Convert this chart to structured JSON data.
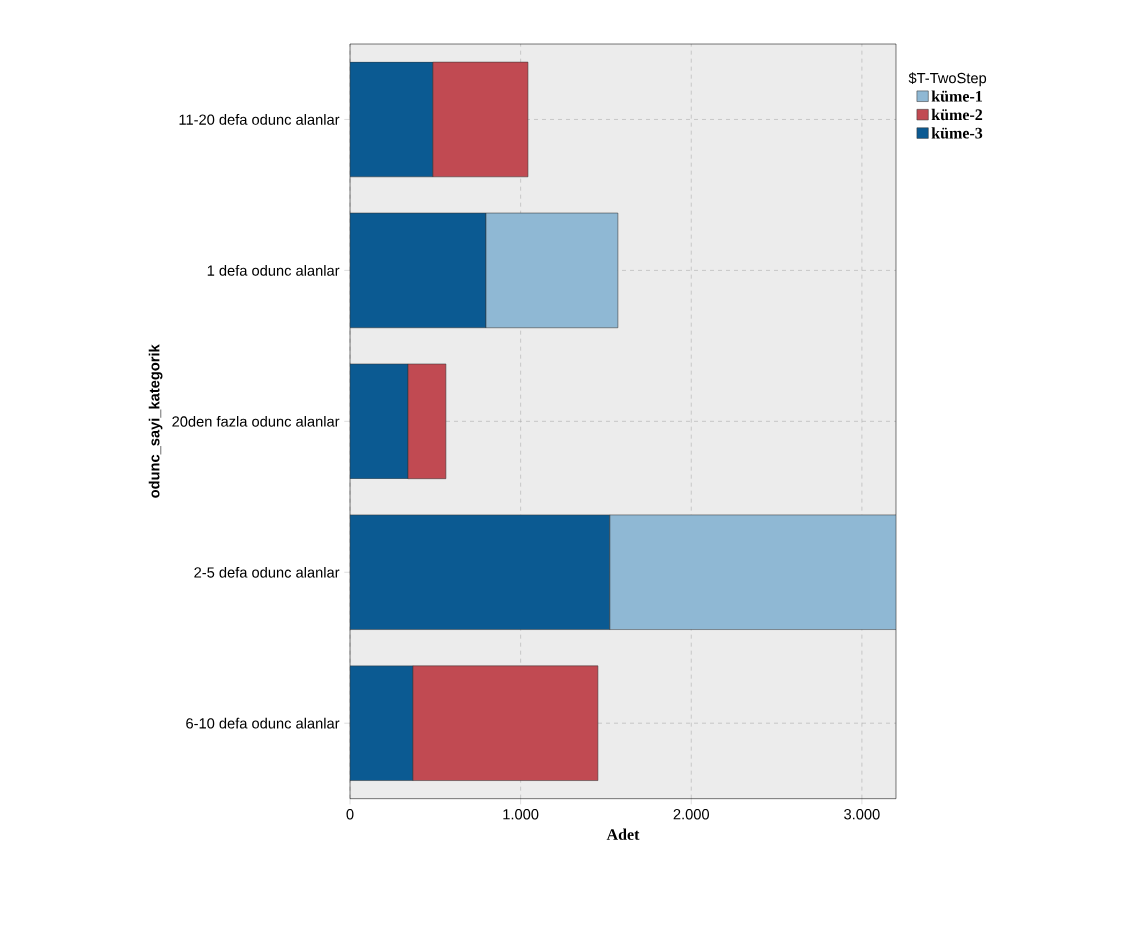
{
  "chart_data": {
    "type": "bar",
    "orientation": "horizontal",
    "stacked": true,
    "xlabel": "Adet",
    "ylabel": "odunc_sayi_kategorik",
    "legend_title": "$T-TwoStep",
    "categories": [
      "11-20 defa odunc alanlar",
      "1 defa odunc alanlar",
      "20den fazla odunc alanlar",
      "2-5 defa odunc alanlar",
      "6-10 defa odunc alanlar"
    ],
    "series": [
      {
        "name": "küme-3",
        "color": "#0b5a92",
        "values": [
          486,
          797,
          340,
          1523,
          369
        ]
      },
      {
        "name": "küme-1",
        "color": "#8fb8d4",
        "values": [
          null,
          773,
          null,
          1677,
          null
        ]
      },
      {
        "name": "küme-2",
        "color": "#c14a52",
        "values": [
          557,
          null,
          222,
          null,
          1084
        ]
      }
    ],
    "xlim": [
      0,
      3200
    ],
    "xticks": [
      0,
      {
        "value": 1000,
        "label": "1.000"
      },
      {
        "value": 2000,
        "label": "2.000"
      },
      {
        "value": 3000,
        "label": "3.000"
      }
    ],
    "grid": true,
    "legend": "top right"
  }
}
